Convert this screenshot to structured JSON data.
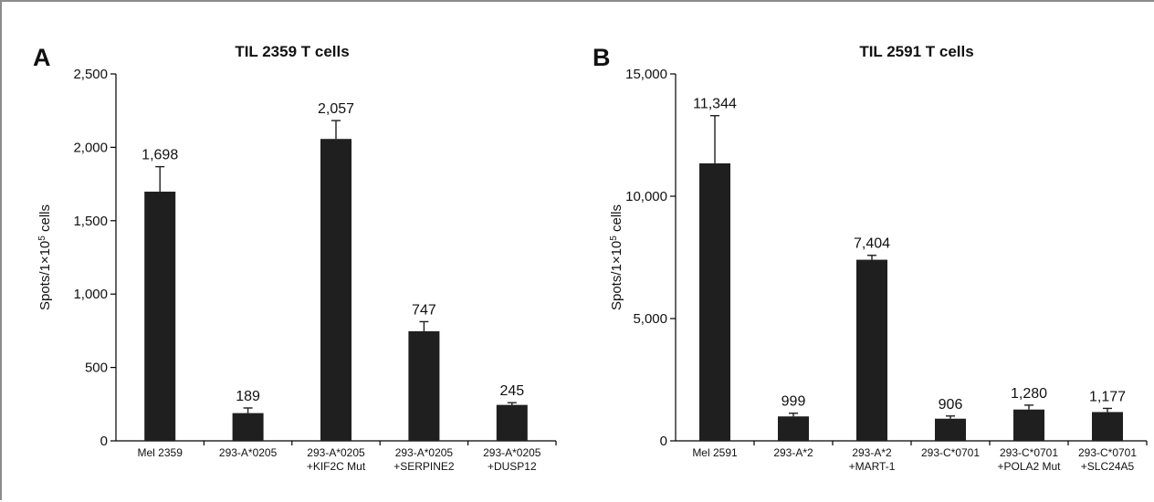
{
  "chart_data": [
    {
      "type": "bar",
      "panel_label": "A",
      "title": "TIL 2359 T cells",
      "ylabel": "Spots/1×10",
      "ylabel_sup": "5",
      "ylabel_suffix": " cells",
      "xlabel": "",
      "ylim": [
        0,
        2500
      ],
      "yticks": [
        0,
        500,
        1000,
        1500,
        2000,
        2500
      ],
      "ytick_labels": [
        "0",
        "500",
        "1,000",
        "1,500",
        "2,000",
        "2,500"
      ],
      "categories": [
        [
          "Mel 2359"
        ],
        [
          "293-A*0205"
        ],
        [
          "293-A*0205",
          "+KIF2C Mut"
        ],
        [
          "293-A*0205",
          "+SERPINE2"
        ],
        [
          "293-A*0205",
          "+DUSP12"
        ]
      ],
      "values": [
        1698,
        189,
        2057,
        747,
        245
      ],
      "value_labels": [
        "1,698",
        "189",
        "2,057",
        "747",
        "245"
      ],
      "errors": [
        170,
        35,
        125,
        65,
        15
      ],
      "bar_color": "#1f1f1f"
    },
    {
      "type": "bar",
      "panel_label": "B",
      "title": "TIL 2591 T cells",
      "ylabel": "Spots/1×10",
      "ylabel_sup": "5",
      "ylabel_suffix": " cells",
      "xlabel": "",
      "ylim": [
        0,
        15000
      ],
      "yticks": [
        0,
        5000,
        10000,
        15000
      ],
      "ytick_labels": [
        "0",
        "5,000",
        "10,000",
        "15,000"
      ],
      "categories": [
        [
          "Mel 2591"
        ],
        [
          "293-A*2"
        ],
        [
          "293-A*2",
          "+MART-1"
        ],
        [
          "293-C*0701"
        ],
        [
          "293-C*0701",
          "+POLA2 Mut"
        ],
        [
          "293-C*0701",
          "+SLC24A5"
        ]
      ],
      "values": [
        11344,
        999,
        7404,
        906,
        1280,
        1177
      ],
      "value_labels": [
        "11,344",
        "999",
        "7,404",
        "906",
        "1,280",
        "1,177"
      ],
      "errors": [
        1950,
        130,
        180,
        110,
        180,
        150
      ],
      "bar_color": "#1f1f1f"
    }
  ]
}
